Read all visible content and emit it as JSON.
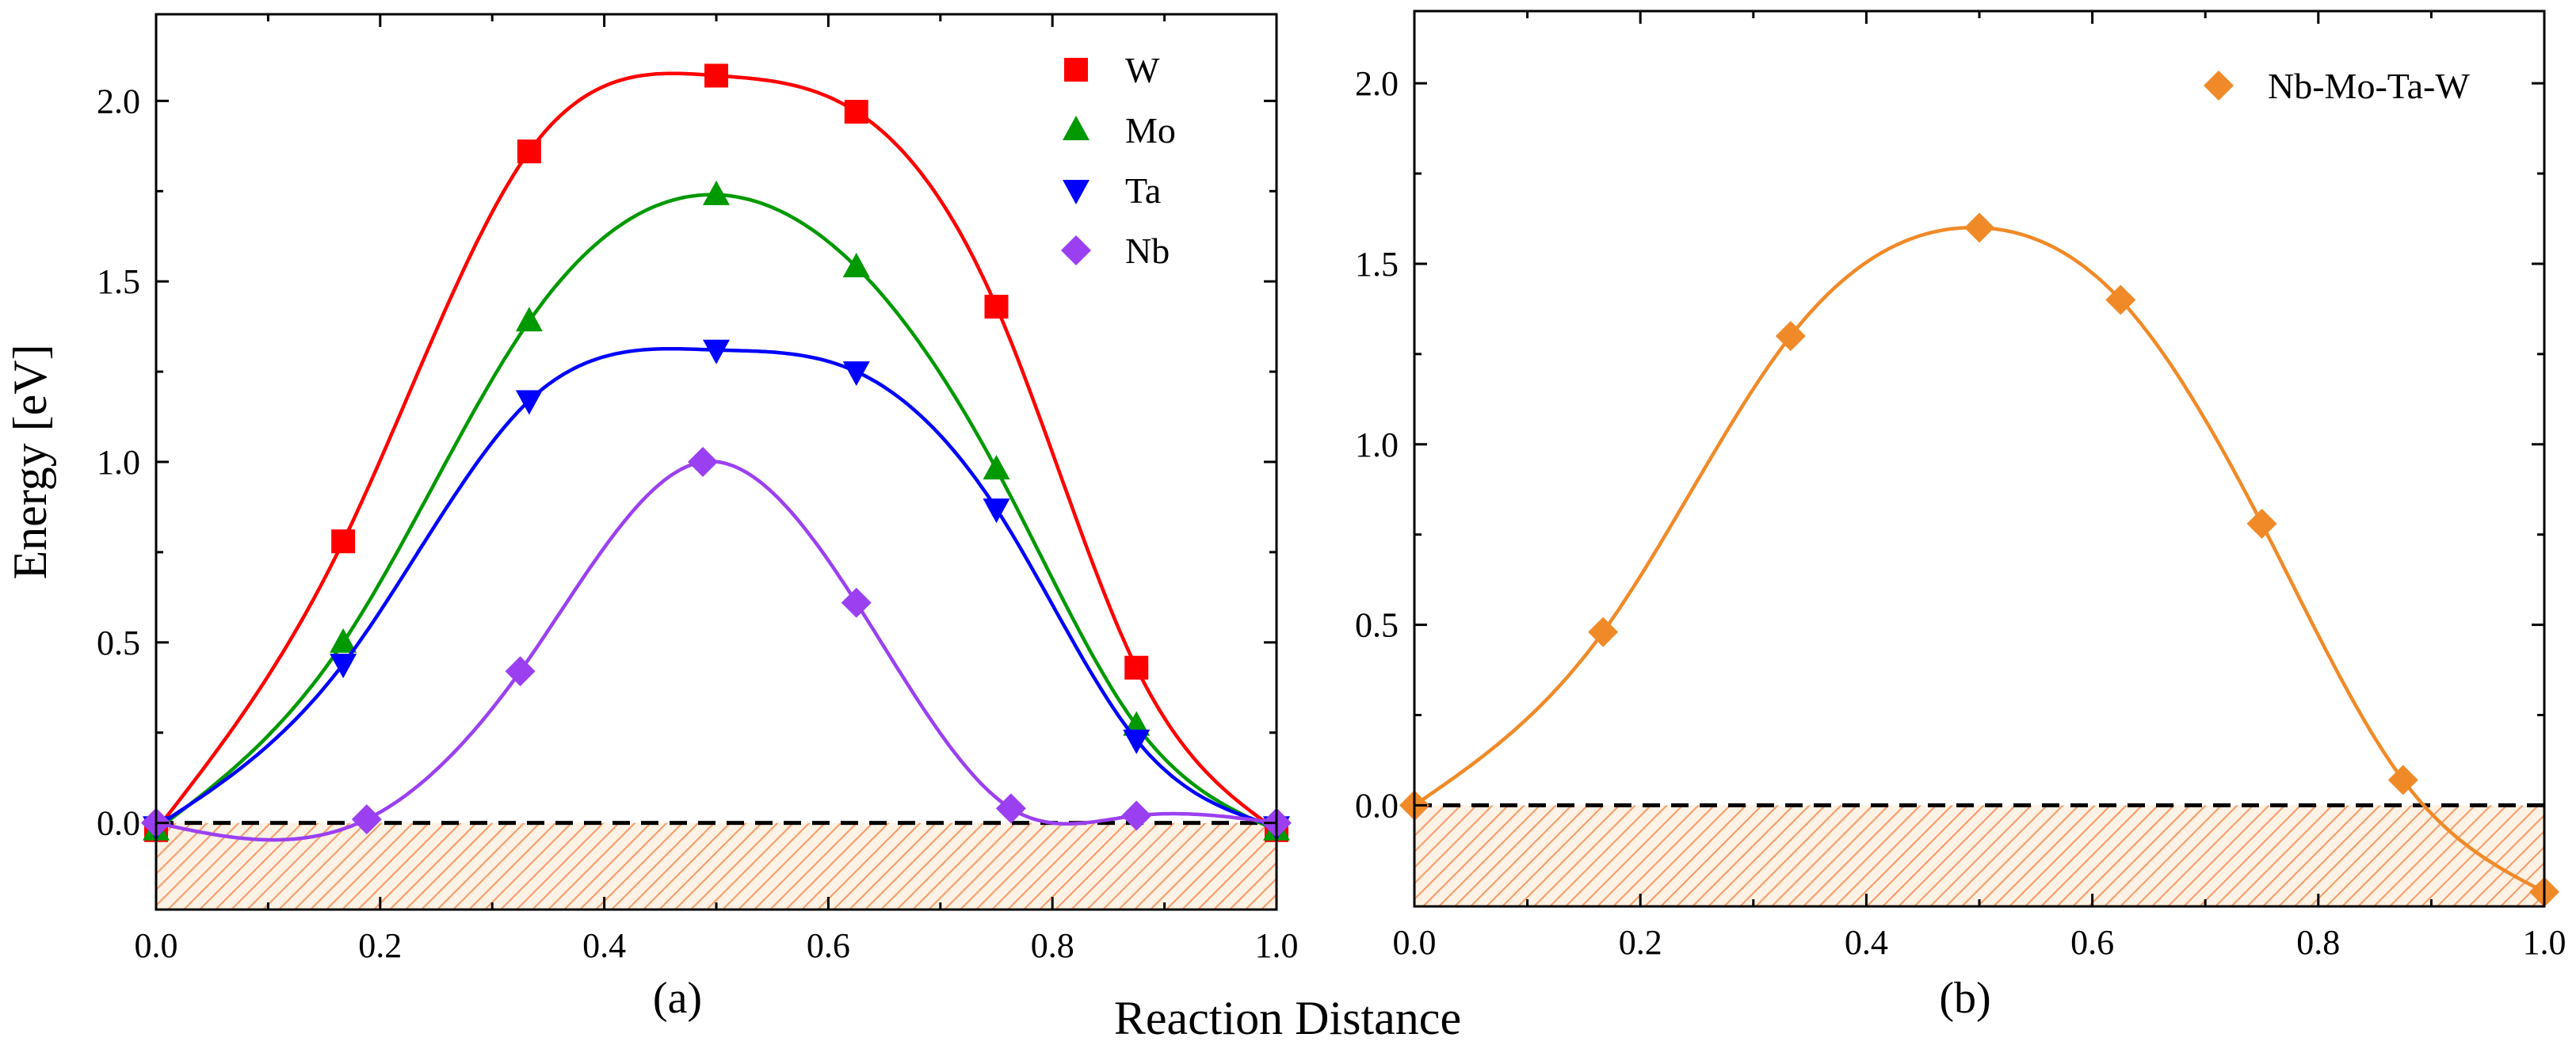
{
  "figure": {
    "shared_xlabel": "Reaction Distance"
  },
  "colors": {
    "W": "#ff0000",
    "Mo": "#009900",
    "Ta": "#0000ff",
    "Nb": "#9b40f0",
    "NbMoTaW": "#f08a28",
    "hatch": "#f3a070",
    "hatch_bg": "#fdf2e4"
  },
  "chart_data": [
    {
      "panel": "(a)",
      "type": "line",
      "xlabel": "",
      "ylabel": "Energy [eV]",
      "xlim": [
        0.0,
        1.0
      ],
      "ylim": [
        -0.24,
        2.24
      ],
      "xticks": [
        "0.0",
        "0.2",
        "0.4",
        "0.6",
        "0.8",
        "1.0"
      ],
      "yticks": [
        "0.0",
        "0.5",
        "1.0",
        "1.5",
        "2.0"
      ],
      "reference_line": 0.0,
      "hatched_region": [
        -0.24,
        0.0
      ],
      "legend_position": "top-right",
      "series": [
        {
          "name": "W",
          "marker": "square",
          "color_key": "W",
          "x": [
            0.0,
            0.167,
            0.333,
            0.5,
            0.625,
            0.75,
            0.875,
            1.0
          ],
          "y": [
            -0.02,
            0.78,
            1.86,
            2.07,
            1.97,
            1.43,
            0.43,
            -0.02
          ]
        },
        {
          "name": "Mo",
          "marker": "triangle-up",
          "color_key": "Mo",
          "x": [
            0.0,
            0.167,
            0.333,
            0.5,
            0.625,
            0.75,
            0.875,
            1.0
          ],
          "y": [
            -0.02,
            0.5,
            1.39,
            1.74,
            1.54,
            0.98,
            0.27,
            -0.02
          ]
        },
        {
          "name": "Ta",
          "marker": "triangle-down",
          "color_key": "Ta",
          "x": [
            0.0,
            0.167,
            0.333,
            0.5,
            0.625,
            0.75,
            0.875,
            1.0
          ],
          "y": [
            -0.01,
            0.44,
            1.17,
            1.31,
            1.25,
            0.87,
            0.23,
            -0.01
          ]
        },
        {
          "name": "Nb",
          "marker": "diamond",
          "color_key": "Nb",
          "x": [
            0.0,
            0.188,
            0.325,
            0.488,
            0.625,
            0.763,
            0.875,
            1.0
          ],
          "y": [
            0.0,
            0.01,
            0.42,
            1.0,
            0.61,
            0.04,
            0.02,
            0.0
          ]
        }
      ]
    },
    {
      "panel": "(b)",
      "type": "line",
      "xlabel": "",
      "ylabel": "",
      "xlim": [
        0.0,
        1.0
      ],
      "ylim": [
        -0.28,
        2.2
      ],
      "xticks": [
        "0.0",
        "0.2",
        "0.4",
        "0.6",
        "0.8",
        "1.0"
      ],
      "yticks": [
        "0.0",
        "0.5",
        "1.0",
        "1.5",
        "2.0"
      ],
      "reference_line": 0.0,
      "hatched_region": [
        -0.28,
        0.0
      ],
      "legend_position": "top-right",
      "series": [
        {
          "name": "Nb-Mo-Ta-W",
          "marker": "diamond",
          "color_key": "NbMoTaW",
          "x": [
            0.0,
            0.167,
            0.333,
            0.5,
            0.625,
            0.75,
            0.875,
            1.0
          ],
          "y": [
            0.0,
            0.48,
            1.3,
            1.6,
            1.4,
            0.78,
            0.07,
            -0.24
          ]
        }
      ]
    }
  ]
}
